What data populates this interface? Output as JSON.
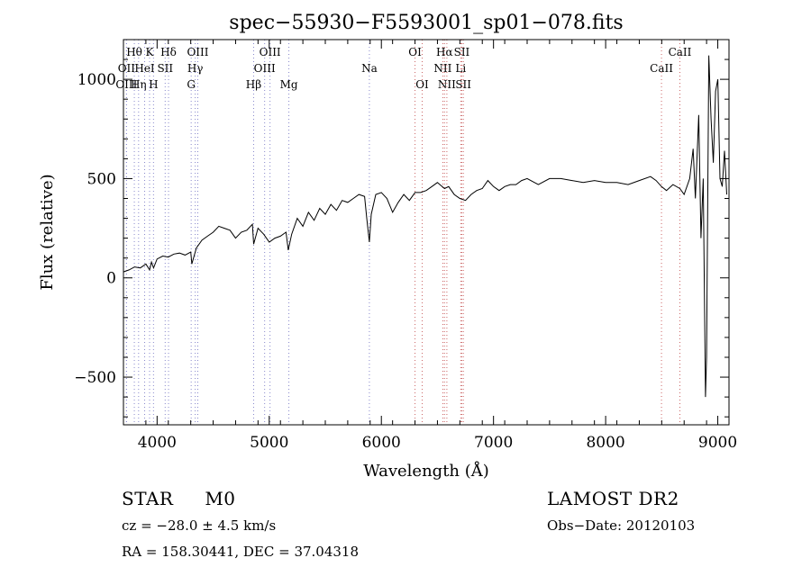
{
  "chart_data": {
    "type": "line",
    "title": "spec−55930−F5593001_sp01−078.fits",
    "xlabel": "Wavelength (Å)",
    "ylabel": "Flux (relative)",
    "xlim": [
      3700,
      9100
    ],
    "ylim": [
      -740,
      1200
    ],
    "x_ticks": [
      4000,
      5000,
      6000,
      7000,
      8000,
      9000
    ],
    "y_ticks": [
      -500,
      0,
      500,
      1000
    ],
    "grid": false,
    "series": [
      {
        "x": [
          3700,
          3750,
          3800,
          3850,
          3900,
          3933,
          3950,
          3968,
          4000,
          4050,
          4100,
          4150,
          4200,
          4250,
          4300,
          4310,
          4350,
          4400,
          4450,
          4500,
          4550,
          4600,
          4650,
          4700,
          4750,
          4800,
          4850,
          4861,
          4900,
          4950,
          5000,
          5050,
          5100,
          5150,
          5170,
          5200,
          5250,
          5300,
          5350,
          5400,
          5450,
          5500,
          5550,
          5600,
          5650,
          5700,
          5750,
          5800,
          5850,
          5870,
          5893,
          5910,
          5950,
          6000,
          6050,
          6100,
          6150,
          6200,
          6250,
          6300,
          6350,
          6400,
          6450,
          6500,
          6563,
          6600,
          6650,
          6700,
          6750,
          6800,
          6850,
          6900,
          6950,
          7000,
          7050,
          7100,
          7150,
          7200,
          7250,
          7300,
          7400,
          7500,
          7600,
          7700,
          7800,
          7900,
          8000,
          8100,
          8200,
          8300,
          8400,
          8450,
          8498,
          8542,
          8600,
          8662,
          8700,
          8750,
          8780,
          8800,
          8830,
          8850,
          8870,
          8890,
          8900,
          8920,
          8940,
          8960,
          8980,
          9000,
          9020,
          9040,
          9060,
          9080
        ],
        "y": [
          30,
          40,
          55,
          50,
          70,
          40,
          80,
          50,
          95,
          110,
          105,
          120,
          125,
          115,
          130,
          70,
          150,
          190,
          210,
          230,
          260,
          250,
          240,
          200,
          230,
          240,
          270,
          170,
          250,
          220,
          180,
          200,
          210,
          230,
          140,
          220,
          300,
          260,
          330,
          290,
          350,
          320,
          370,
          340,
          390,
          380,
          400,
          420,
          410,
          300,
          180,
          320,
          420,
          430,
          400,
          330,
          380,
          420,
          390,
          430,
          430,
          440,
          460,
          480,
          450,
          460,
          420,
          400,
          390,
          420,
          440,
          450,
          490,
          460,
          440,
          460,
          470,
          470,
          490,
          500,
          470,
          500,
          500,
          490,
          480,
          490,
          480,
          480,
          470,
          490,
          510,
          490,
          460,
          440,
          470,
          450,
          420,
          500,
          650,
          400,
          820,
          200,
          500,
          -600,
          -400,
          1120,
          800,
          580,
          940,
          1000,
          500,
          460,
          640,
          420
        ]
      }
    ],
    "spectral_lines": [
      {
        "label": "Hθ",
        "wavelength": 3797,
        "row": 0
      },
      {
        "label": "K",
        "wavelength": 3933,
        "row": 0
      },
      {
        "label": "Hδ",
        "wavelength": 4102,
        "row": 0
      },
      {
        "label": "OIII",
        "wavelength": 4363,
        "row": 0
      },
      {
        "label": "OIII",
        "wavelength": 5007,
        "row": 0
      },
      {
        "label": "OI",
        "wavelength": 6300,
        "row": 0
      },
      {
        "label": "Hα",
        "wavelength": 6563,
        "row": 0
      },
      {
        "label": "SII",
        "wavelength": 6717,
        "row": 0
      },
      {
        "label": "CaII",
        "wavelength": 8662,
        "row": 0
      },
      {
        "label": "OII",
        "wavelength": 3727,
        "row": 1
      },
      {
        "label": "HeI",
        "wavelength": 3889,
        "row": 1
      },
      {
        "label": "SII",
        "wavelength": 4072,
        "row": 1
      },
      {
        "label": "Hγ",
        "wavelength": 4340,
        "row": 1
      },
      {
        "label": "OIII",
        "wavelength": 4959,
        "row": 1
      },
      {
        "label": "Na",
        "wavelength": 5893,
        "row": 1
      },
      {
        "label": "NII",
        "wavelength": 6548,
        "row": 1
      },
      {
        "label": "Li",
        "wavelength": 6708,
        "row": 1
      },
      {
        "label": "CaII",
        "wavelength": 8498,
        "row": 1
      },
      {
        "label": "OIII",
        "wavelength": 3727,
        "row": 2
      },
      {
        "label": "Hη",
        "wavelength": 3835,
        "row": 2
      },
      {
        "label": "H",
        "wavelength": 3968,
        "row": 2
      },
      {
        "label": "G",
        "wavelength": 4304,
        "row": 2
      },
      {
        "label": "Hβ",
        "wavelength": 4861,
        "row": 2
      },
      {
        "label": "Mg",
        "wavelength": 5175,
        "row": 2
      },
      {
        "label": "OI",
        "wavelength": 6364,
        "row": 2
      },
      {
        "label": "NII",
        "wavelength": 6584,
        "row": 2
      },
      {
        "label": "SII",
        "wavelength": 6731,
        "row": 2
      }
    ],
    "line_color_blue": "#8888cc",
    "line_color_red": "#cc6666"
  },
  "info": {
    "object_class": "STAR",
    "subclass": "M0",
    "redshift": "cz = −28.0 ± 4.5 km/s",
    "coords": "RA = 158.30441, DEC =  37.04318",
    "survey": "LAMOST DR2",
    "obs_date": "Obs−Date: 20120103"
  }
}
